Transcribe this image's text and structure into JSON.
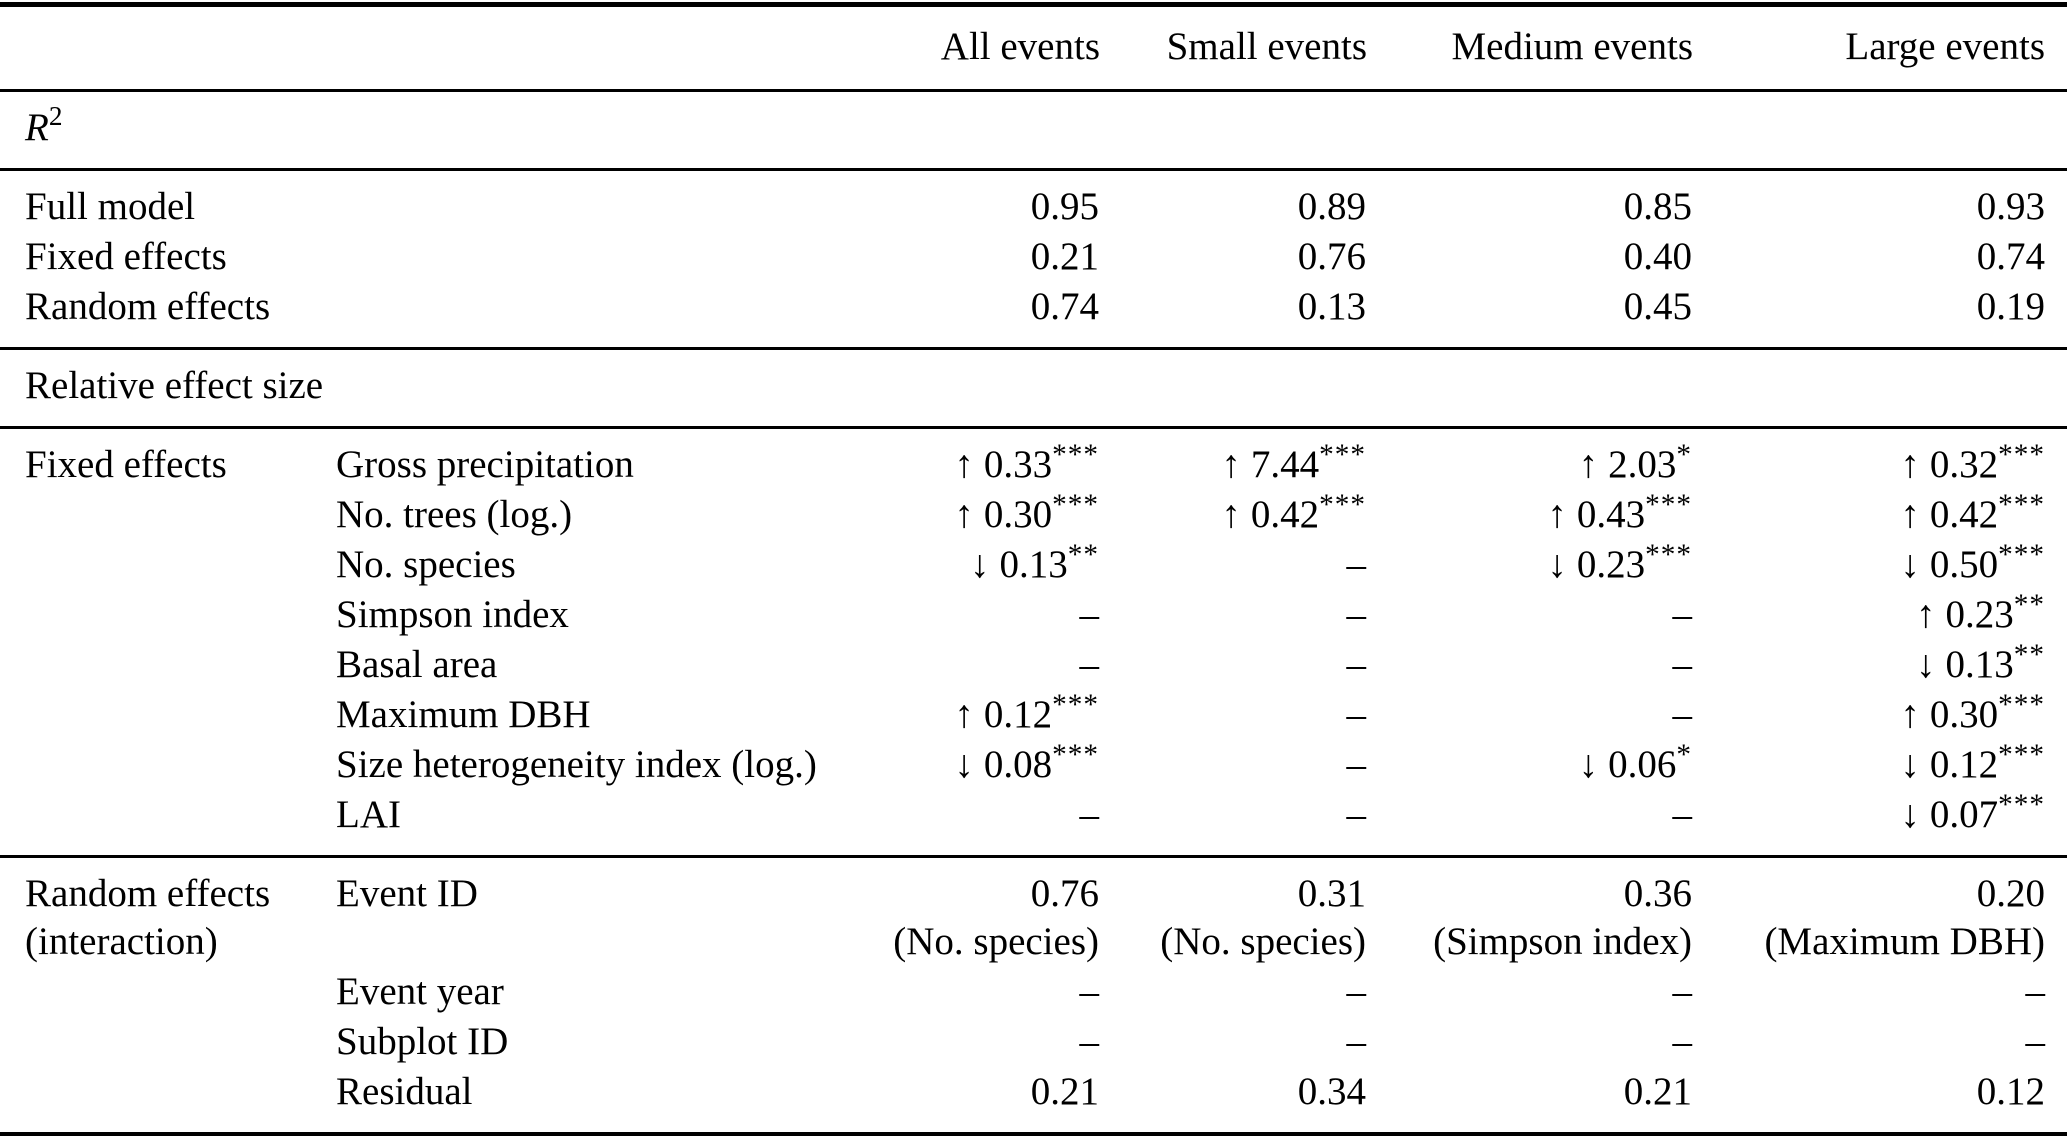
{
  "page": {
    "background_color": "#ffffff",
    "text_color": "#000000"
  },
  "table": {
    "columns": [
      "All events",
      "Small events",
      "Medium events",
      "Large events"
    ],
    "missing_symbol": "–",
    "sections": [
      {
        "type": "heading",
        "name": "r-squared",
        "base": "R",
        "sup": "2"
      },
      {
        "type": "rows",
        "name": "r-squared-values",
        "label_col": 0,
        "rows": [
          {
            "label": "Full model",
            "cells": [
              {
                "value": "0.95"
              },
              {
                "value": "0.89"
              },
              {
                "value": "0.85"
              },
              {
                "value": "0.93"
              }
            ]
          },
          {
            "label": "Fixed effects",
            "cells": [
              {
                "value": "0.21"
              },
              {
                "value": "0.76"
              },
              {
                "value": "0.40"
              },
              {
                "value": "0.74"
              }
            ]
          },
          {
            "label": "Random effects",
            "cells": [
              {
                "value": "0.74"
              },
              {
                "value": "0.13"
              },
              {
                "value": "0.45"
              },
              {
                "value": "0.19"
              }
            ]
          }
        ]
      },
      {
        "type": "heading",
        "name": "relative-effect-size",
        "label": "Relative effect size"
      },
      {
        "type": "rows",
        "name": "fixed-effects-block",
        "label_col": 1,
        "group": "Fixed effects",
        "rows": [
          {
            "label": "Gross precipitation",
            "cells": [
              {
                "arrow": "↑",
                "value": "0.33",
                "stars": "***"
              },
              {
                "arrow": "↑",
                "value": "7.44",
                "stars": "***"
              },
              {
                "arrow": "↑",
                "value": "2.03",
                "stars": "*"
              },
              {
                "arrow": "↑",
                "value": "0.32",
                "stars": "***"
              }
            ]
          },
          {
            "label": "No. trees (log.)",
            "cells": [
              {
                "arrow": "↑",
                "value": "0.30",
                "stars": "***"
              },
              {
                "arrow": "↑",
                "value": "0.42",
                "stars": "***"
              },
              {
                "arrow": "↑",
                "value": "0.43",
                "stars": "***"
              },
              {
                "arrow": "↑",
                "value": "0.42",
                "stars": "***"
              }
            ]
          },
          {
            "label": "No. species",
            "cells": [
              {
                "arrow": "↓",
                "value": "0.13",
                "stars": "**"
              },
              {
                "value": "–"
              },
              {
                "arrow": "↓",
                "value": "0.23",
                "stars": "***"
              },
              {
                "arrow": "↓",
                "value": "0.50",
                "stars": "***"
              }
            ]
          },
          {
            "label": "Simpson index",
            "cells": [
              {
                "value": "–"
              },
              {
                "value": "–"
              },
              {
                "value": "–"
              },
              {
                "arrow": "↑",
                "value": "0.23",
                "stars": "**"
              }
            ]
          },
          {
            "label": "Basal area",
            "cells": [
              {
                "value": "–"
              },
              {
                "value": "–"
              },
              {
                "value": "–"
              },
              {
                "arrow": "↓",
                "value": "0.13",
                "stars": "**"
              }
            ]
          },
          {
            "label": "Maximum DBH",
            "cells": [
              {
                "arrow": "↑",
                "value": "0.12",
                "stars": "***"
              },
              {
                "value": "–"
              },
              {
                "value": "–"
              },
              {
                "arrow": "↑",
                "value": "0.30",
                "stars": "***"
              }
            ]
          },
          {
            "label": "Size heterogeneity index (log.)",
            "cells": [
              {
                "arrow": "↓",
                "value": "0.08",
                "stars": "***"
              },
              {
                "value": "–"
              },
              {
                "arrow": "↓",
                "value": "0.06",
                "stars": "*"
              },
              {
                "arrow": "↓",
                "value": "0.12",
                "stars": "***"
              }
            ]
          },
          {
            "label": "LAI",
            "cells": [
              {
                "value": "–"
              },
              {
                "value": "–"
              },
              {
                "value": "–"
              },
              {
                "arrow": "↓",
                "value": "0.07",
                "stars": "***"
              }
            ]
          }
        ]
      },
      {
        "type": "rows",
        "name": "random-effects-block",
        "label_col": 1,
        "group": "Random effects\n(interaction)",
        "rows": [
          {
            "label": "Event ID",
            "cells": [
              {
                "value": "0.76",
                "note": "(No. species)"
              },
              {
                "value": "0.31",
                "note": "(No. species)"
              },
              {
                "value": "0.36",
                "note": "(Simpson index)"
              },
              {
                "value": "0.20",
                "note": "(Maximum DBH)"
              }
            ]
          },
          {
            "label": "Event year",
            "cells": [
              {
                "value": "–"
              },
              {
                "value": "–"
              },
              {
                "value": "–"
              },
              {
                "value": "–"
              }
            ]
          },
          {
            "label": "Subplot ID",
            "cells": [
              {
                "value": "–"
              },
              {
                "value": "–"
              },
              {
                "value": "–"
              },
              {
                "value": "–"
              }
            ]
          },
          {
            "label": "Residual",
            "cells": [
              {
                "value": "0.21"
              },
              {
                "value": "0.34"
              },
              {
                "value": "0.21"
              },
              {
                "value": "0.12"
              }
            ]
          }
        ]
      }
    ]
  }
}
